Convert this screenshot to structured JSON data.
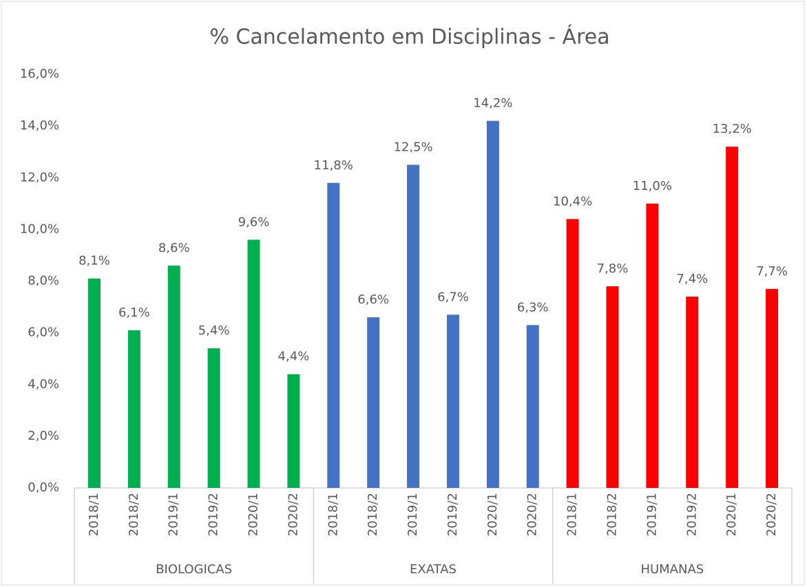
{
  "chart_data": {
    "type": "bar",
    "title": "% Cancelamento em Disciplinas - Área",
    "groups": [
      {
        "name": "BIOLOGICAS",
        "color": "#00b050",
        "categories": [
          "2018/1",
          "2018/2",
          "2019/1",
          "2019/2",
          "2020/1",
          "2020/2"
        ],
        "values": [
          8.1,
          6.1,
          8.6,
          5.4,
          9.6,
          4.4
        ],
        "value_labels": [
          "8,1%",
          "6,1%",
          "8,6%",
          "5,4%",
          "9,6%",
          "4,4%"
        ]
      },
      {
        "name": "EXATAS",
        "color": "#4472c4",
        "categories": [
          "2018/1",
          "2018/2",
          "2019/1",
          "2019/2",
          "2020/1",
          "2020/2"
        ],
        "values": [
          11.8,
          6.6,
          12.5,
          6.7,
          14.2,
          6.3
        ],
        "value_labels": [
          "11,8%",
          "6,6%",
          "12,5%",
          "6,7%",
          "14,2%",
          "6,3%"
        ]
      },
      {
        "name": "HUMANAS",
        "color": "#ff0000",
        "categories": [
          "2018/1",
          "2018/2",
          "2019/1",
          "2019/2",
          "2020/1",
          "2020/2"
        ],
        "values": [
          10.4,
          7.8,
          11.0,
          7.4,
          13.2,
          7.7
        ],
        "value_labels": [
          "10,4%",
          "7,8%",
          "11,0%",
          "7,4%",
          "13,2%",
          "7,7%"
        ]
      }
    ],
    "ylim": [
      0,
      16
    ],
    "yticks": [
      {
        "value": 0,
        "label": "0,0%"
      },
      {
        "value": 2,
        "label": "2,0%"
      },
      {
        "value": 4,
        "label": "4,0%"
      },
      {
        "value": 6,
        "label": "6,0%"
      },
      {
        "value": 8,
        "label": "8,0%"
      },
      {
        "value": 10,
        "label": "10,0%"
      },
      {
        "value": 12,
        "label": "12,0%"
      },
      {
        "value": 14,
        "label": "14,0%"
      },
      {
        "value": 16,
        "label": "16,0%"
      }
    ],
    "grid": false
  }
}
